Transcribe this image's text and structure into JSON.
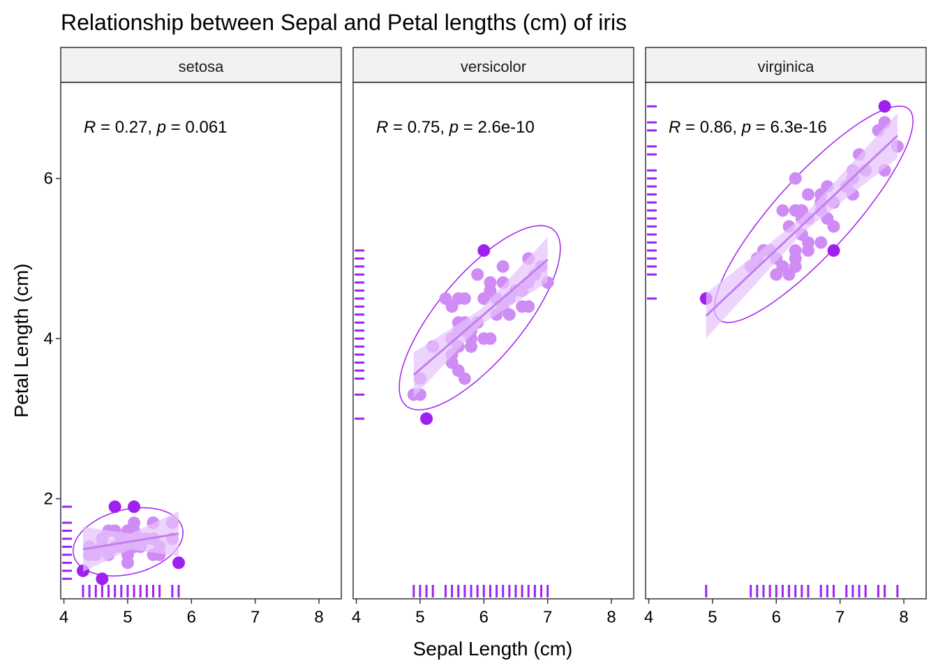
{
  "chart_data": {
    "type": "scatter",
    "title": "Relationship between Sepal and Petal lengths (cm) of iris",
    "xlabel": "Sepal Length (cm)",
    "ylabel": "Petal Length (cm)",
    "xlim": [
      3.95,
      8.35
    ],
    "ylim": [
      0.75,
      7.2
    ],
    "xticks": [
      4,
      5,
      6,
      7,
      8
    ],
    "yticks": [
      2,
      4,
      6
    ],
    "grid": false,
    "colors": {
      "point_inner": "#d08cf5",
      "point_outlier": "#a020f0",
      "ellipse": "#a020f0",
      "band": "#e6c2fb",
      "fit_line": "#c27ff0",
      "rug": "#a020f0",
      "strip_bg": "#f2f2f2"
    },
    "panels": [
      {
        "name": "setosa",
        "stat": {
          "R": "0.27",
          "p": "0.061"
        },
        "fit": {
          "x0": 4.3,
          "x1": 5.8,
          "slope": 0.13,
          "intercept": 0.81
        },
        "ellipse": {
          "cx": 5.006,
          "cy": 1.462,
          "sx": 0.352,
          "sy": 0.174,
          "r": 0.267
        },
        "points": [
          [
            5.1,
            1.4
          ],
          [
            4.9,
            1.4
          ],
          [
            4.7,
            1.3
          ],
          [
            4.6,
            1.5
          ],
          [
            5.0,
            1.4
          ],
          [
            5.4,
            1.7
          ],
          [
            4.6,
            1.4
          ],
          [
            5.0,
            1.5
          ],
          [
            4.4,
            1.4
          ],
          [
            4.9,
            1.5
          ],
          [
            5.4,
            1.5
          ],
          [
            4.8,
            1.6
          ],
          [
            4.8,
            1.4
          ],
          [
            4.3,
            1.1
          ],
          [
            5.8,
            1.2
          ],
          [
            5.7,
            1.5
          ],
          [
            5.4,
            1.3
          ],
          [
            5.1,
            1.4
          ],
          [
            5.7,
            1.7
          ],
          [
            5.1,
            1.5
          ],
          [
            5.4,
            1.7
          ],
          [
            5.1,
            1.5
          ],
          [
            4.6,
            1.0
          ],
          [
            5.1,
            1.7
          ],
          [
            4.8,
            1.9
          ],
          [
            5.0,
            1.6
          ],
          [
            5.0,
            1.6
          ],
          [
            5.2,
            1.5
          ],
          [
            5.2,
            1.4
          ],
          [
            4.7,
            1.6
          ],
          [
            4.8,
            1.6
          ],
          [
            5.4,
            1.5
          ],
          [
            5.2,
            1.5
          ],
          [
            5.5,
            1.4
          ],
          [
            4.9,
            1.5
          ],
          [
            5.0,
            1.2
          ],
          [
            5.5,
            1.3
          ],
          [
            4.9,
            1.4
          ],
          [
            4.4,
            1.3
          ],
          [
            5.1,
            1.5
          ],
          [
            5.0,
            1.3
          ],
          [
            4.5,
            1.3
          ],
          [
            4.4,
            1.3
          ],
          [
            5.0,
            1.6
          ],
          [
            5.1,
            1.9
          ],
          [
            4.8,
            1.4
          ],
          [
            5.1,
            1.6
          ],
          [
            4.6,
            1.4
          ],
          [
            5.3,
            1.5
          ],
          [
            5.0,
            1.4
          ]
        ]
      },
      {
        "name": "versicolor",
        "stat": {
          "R": "0.75",
          "p": "2.6e-10"
        },
        "fit": {
          "x0": 4.9,
          "x1": 7.0,
          "slope": 0.686,
          "intercept": 0.185
        },
        "ellipse": {
          "cx": 5.936,
          "cy": 4.26,
          "sx": 0.516,
          "sy": 0.47,
          "r": 0.754
        },
        "points": [
          [
            7.0,
            4.7
          ],
          [
            6.4,
            4.5
          ],
          [
            6.9,
            4.9
          ],
          [
            5.5,
            4.0
          ],
          [
            6.5,
            4.6
          ],
          [
            5.7,
            4.5
          ],
          [
            6.3,
            4.7
          ],
          [
            4.9,
            3.3
          ],
          [
            6.6,
            4.6
          ],
          [
            5.2,
            3.9
          ],
          [
            5.0,
            3.5
          ],
          [
            5.9,
            4.2
          ],
          [
            6.0,
            4.0
          ],
          [
            6.1,
            4.7
          ],
          [
            5.6,
            3.6
          ],
          [
            6.7,
            4.4
          ],
          [
            5.6,
            4.5
          ],
          [
            5.8,
            4.1
          ],
          [
            6.2,
            4.5
          ],
          [
            5.6,
            3.9
          ],
          [
            5.9,
            4.8
          ],
          [
            6.1,
            4.0
          ],
          [
            6.3,
            4.9
          ],
          [
            6.1,
            4.7
          ],
          [
            6.4,
            4.3
          ],
          [
            6.6,
            4.4
          ],
          [
            6.8,
            4.8
          ],
          [
            6.7,
            5.0
          ],
          [
            6.0,
            4.5
          ],
          [
            5.7,
            3.5
          ],
          [
            5.5,
            3.8
          ],
          [
            5.5,
            3.7
          ],
          [
            5.8,
            3.9
          ],
          [
            6.0,
            5.1
          ],
          [
            5.4,
            4.5
          ],
          [
            6.0,
            4.5
          ],
          [
            6.7,
            4.7
          ],
          [
            6.3,
            4.4
          ],
          [
            5.6,
            4.1
          ],
          [
            5.5,
            4.0
          ],
          [
            5.5,
            4.4
          ],
          [
            6.1,
            4.6
          ],
          [
            5.8,
            4.0
          ],
          [
            5.0,
            3.3
          ],
          [
            5.6,
            4.2
          ],
          [
            5.7,
            4.2
          ],
          [
            5.7,
            4.2
          ],
          [
            6.2,
            4.3
          ],
          [
            5.1,
            3.0
          ],
          [
            5.7,
            4.1
          ]
        ]
      },
      {
        "name": "virginica",
        "stat": {
          "R": "0.86",
          "p": "6.3e-16"
        },
        "fit": {
          "x0": 4.9,
          "x1": 7.9,
          "slope": 0.75,
          "intercept": 0.61
        },
        "ellipse": {
          "cx": 6.588,
          "cy": 5.552,
          "sx": 0.636,
          "sy": 0.552,
          "r": 0.864
        },
        "points": [
          [
            6.3,
            6.0
          ],
          [
            5.8,
            5.1
          ],
          [
            7.1,
            5.9
          ],
          [
            6.3,
            5.6
          ],
          [
            6.5,
            5.8
          ],
          [
            7.6,
            6.6
          ],
          [
            4.9,
            4.5
          ],
          [
            7.3,
            6.3
          ],
          [
            6.7,
            5.8
          ],
          [
            7.2,
            6.1
          ],
          [
            6.5,
            5.1
          ],
          [
            6.4,
            5.3
          ],
          [
            6.8,
            5.5
          ],
          [
            5.7,
            5.0
          ],
          [
            5.8,
            5.1
          ],
          [
            6.4,
            5.3
          ],
          [
            6.5,
            5.5
          ],
          [
            7.7,
            6.7
          ],
          [
            7.7,
            6.9
          ],
          [
            6.0,
            5.0
          ],
          [
            6.9,
            5.7
          ],
          [
            5.6,
            4.9
          ],
          [
            7.7,
            6.7
          ],
          [
            6.3,
            4.9
          ],
          [
            6.7,
            5.7
          ],
          [
            7.2,
            6.0
          ],
          [
            6.2,
            4.8
          ],
          [
            6.1,
            4.9
          ],
          [
            6.4,
            5.6
          ],
          [
            7.2,
            5.8
          ],
          [
            7.4,
            6.1
          ],
          [
            7.9,
            6.4
          ],
          [
            6.4,
            5.6
          ],
          [
            6.3,
            5.1
          ],
          [
            6.1,
            5.6
          ],
          [
            7.7,
            6.1
          ],
          [
            6.3,
            5.6
          ],
          [
            6.4,
            5.5
          ],
          [
            6.0,
            4.8
          ],
          [
            6.9,
            5.4
          ],
          [
            6.7,
            5.6
          ],
          [
            6.9,
            5.1
          ],
          [
            5.8,
            5.1
          ],
          [
            6.8,
            5.9
          ],
          [
            6.7,
            5.7
          ],
          [
            6.7,
            5.2
          ],
          [
            6.3,
            5.0
          ],
          [
            6.5,
            5.2
          ],
          [
            6.2,
            5.4
          ],
          [
            5.9,
            5.1
          ]
        ]
      }
    ]
  }
}
